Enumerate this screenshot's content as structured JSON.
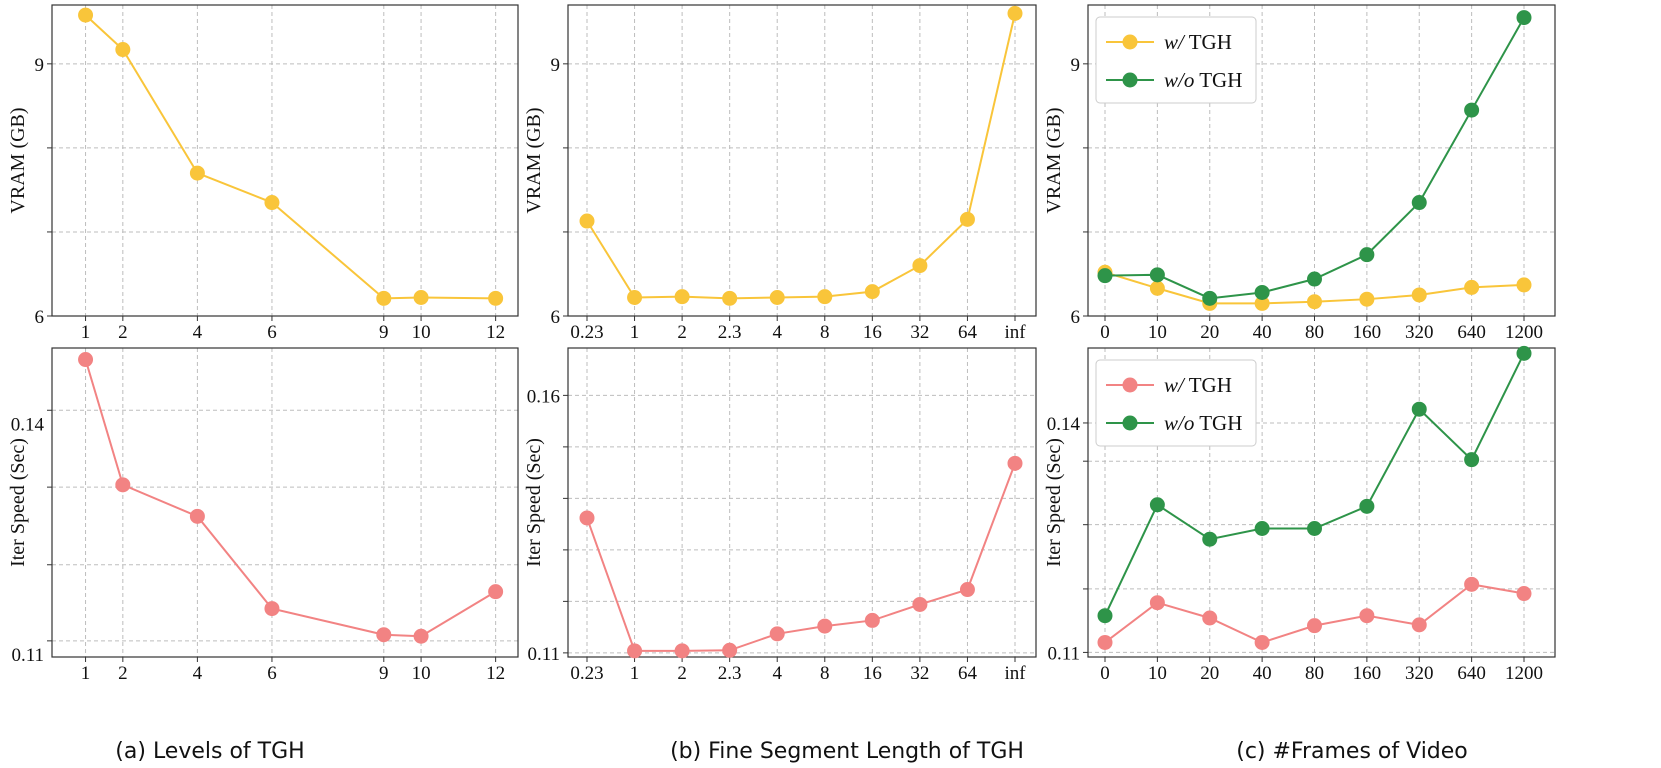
{
  "captions": [
    "(a) Levels of TGH",
    "(b) Fine Segment Length of TGH",
    "(c) #Frames of Video"
  ],
  "colors": {
    "yellow": "#F9C53A",
    "red": "#F28383",
    "green": "#2E9449"
  },
  "chart_data": [
    {
      "id": "a-vram",
      "type": "line",
      "caption_index": 0,
      "xscale": "linear",
      "xlim": [
        0.1,
        12.6
      ],
      "x": [
        1,
        2,
        4,
        6,
        9,
        10,
        12
      ],
      "xticks": [
        1,
        2,
        4,
        6,
        9,
        10,
        12
      ],
      "xticklabels": [
        "1",
        "2",
        "4",
        "6",
        "9",
        "10",
        "12"
      ],
      "ylabel": "VRAM (GB)",
      "ylim": [
        6,
        9.7
      ],
      "yticks": [
        6,
        7,
        8,
        9
      ],
      "yticklabels": [
        "6",
        "",
        "",
        "9"
      ],
      "grid": true,
      "series": [
        {
          "name": "w/ TGH",
          "color": "#F9C53A",
          "values": [
            9.58,
            9.17,
            7.7,
            7.35,
            6.21,
            6.22,
            6.21
          ]
        }
      ]
    },
    {
      "id": "b-vram",
      "type": "line",
      "caption_index": 1,
      "xscale": "categorical",
      "categories": [
        "0.23",
        "1",
        "2",
        "2.3",
        "4",
        "8",
        "16",
        "32",
        "64",
        "inf"
      ],
      "ylabel": "VRAM (GB)",
      "ylim": [
        6,
        9.7
      ],
      "yticks": [
        6,
        7,
        8,
        9
      ],
      "yticklabels": [
        "6",
        "",
        "",
        "9"
      ],
      "grid": true,
      "series": [
        {
          "name": "w/ TGH",
          "color": "#F9C53A",
          "values": [
            7.13,
            6.22,
            6.23,
            6.21,
            6.22,
            6.23,
            6.29,
            6.6,
            7.15,
            9.6
          ]
        }
      ]
    },
    {
      "id": "c-vram",
      "type": "line",
      "caption_index": 2,
      "xscale": "categorical",
      "categories": [
        "0",
        "10",
        "20",
        "40",
        "80",
        "160",
        "320",
        "640",
        "1200"
      ],
      "ylabel": "VRAM (GB)",
      "ylim": [
        6,
        9.7
      ],
      "yticks": [
        6,
        7,
        8,
        9
      ],
      "yticklabels": [
        "6",
        "",
        "",
        "9"
      ],
      "grid": true,
      "legend": "top-left",
      "series": [
        {
          "name": "w/ TGH",
          "name_italic": "w/",
          "name_rest": " TGH",
          "color": "#F9C53A",
          "values": [
            6.52,
            6.33,
            6.15,
            6.15,
            6.17,
            6.2,
            6.25,
            6.34,
            6.37
          ]
        },
        {
          "name": "w/o TGH",
          "name_italic": "w/o",
          "name_rest": " TGH",
          "color": "#2E9449",
          "values": [
            6.48,
            6.49,
            6.21,
            6.28,
            6.44,
            6.73,
            7.35,
            8.45,
            9.55
          ]
        }
      ]
    },
    {
      "id": "a-speed",
      "type": "line",
      "caption_index": 0,
      "xscale": "linear",
      "xlim": [
        0.1,
        12.6
      ],
      "x": [
        1,
        2,
        4,
        6,
        9,
        10,
        12
      ],
      "xticks": [
        1,
        2,
        4,
        6,
        9,
        10,
        12
      ],
      "xticklabels": [
        "1",
        "2",
        "4",
        "6",
        "9",
        "10",
        "12"
      ],
      "ylabel": "Iter Speed (Sec)",
      "ylim": [
        0.1096,
        0.1498
      ],
      "yticks": [
        0.11,
        0.14
      ],
      "yticklabels": [
        "0.11",
        "0.14"
      ],
      "ygrid": [
        0.1117,
        0.1216,
        0.1317,
        0.1417
      ],
      "grid": true,
      "series": [
        {
          "name": "w/ TGH",
          "color": "#F9C53A",
          "color_override": "#F28383",
          "values": [
            0.1483,
            0.132,
            0.1279,
            0.1159,
            0.1125,
            0.1123,
            0.1181
          ]
        }
      ]
    },
    {
      "id": "b-speed",
      "type": "line",
      "caption_index": 1,
      "xscale": "categorical",
      "categories": [
        "0.23",
        "1",
        "2",
        "2.3",
        "4",
        "8",
        "16",
        "32",
        "64",
        "inf"
      ],
      "ylabel": "Iter Speed (Sec)",
      "ylim": [
        0.1092,
        0.1692
      ],
      "yticks": [
        0.11,
        0.16
      ],
      "yticklabels": [
        "0.11",
        "0.16"
      ],
      "ygrid": [
        0.11,
        0.12,
        0.13,
        0.14,
        0.15,
        0.16
      ],
      "grid": true,
      "series": [
        {
          "name": "w/ TGH",
          "color": "#F28383",
          "values": [
            0.1362,
            0.1104,
            0.1104,
            0.1105,
            0.1137,
            0.1152,
            0.1163,
            0.1194,
            0.1223,
            0.1468
          ]
        }
      ]
    },
    {
      "id": "c-speed",
      "type": "line",
      "caption_index": 2,
      "xscale": "categorical",
      "categories": [
        "0",
        "10",
        "20",
        "40",
        "80",
        "160",
        "320",
        "640",
        "1200"
      ],
      "ylabel": "Iter Speed (Sec)",
      "ylim": [
        0.1094,
        0.1498
      ],
      "yticks": [
        0.11,
        0.14
      ],
      "yticklabels": [
        "0.11",
        "0.14"
      ],
      "ygrid": [
        0.11,
        0.1183,
        0.1267,
        0.135,
        0.14
      ],
      "grid": true,
      "legend": "top-left",
      "series": [
        {
          "name": "w/ TGH",
          "name_italic": "w/",
          "name_rest": " TGH",
          "color": "#F28383",
          "values": [
            0.1113,
            0.1165,
            0.1145,
            0.1113,
            0.1135,
            0.1148,
            0.1136,
            0.1189,
            0.1177
          ]
        },
        {
          "name": "w/o TGH",
          "name_italic": "w/o",
          "name_rest": " TGH",
          "color": "#2E9449",
          "values": [
            0.1148,
            0.1293,
            0.1248,
            0.1262,
            0.1262,
            0.1291,
            0.1418,
            0.1352,
            0.1491
          ]
        }
      ]
    }
  ]
}
